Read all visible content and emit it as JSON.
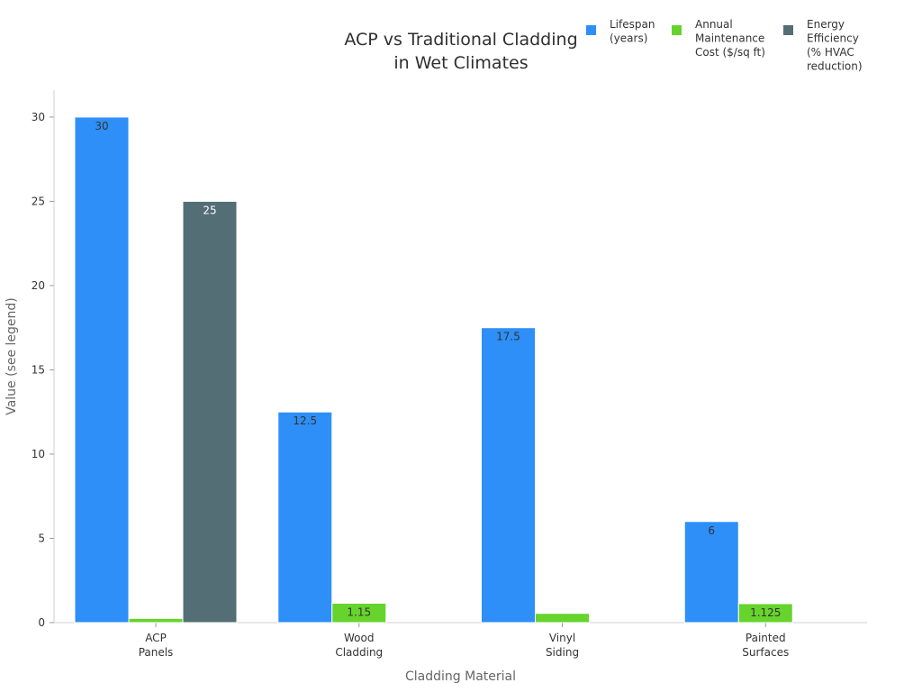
{
  "chart_data": {
    "type": "bar",
    "title_lines": [
      "ACP vs Traditional Cladding",
      "in Wet Climates"
    ],
    "xlabel": "Cladding Material",
    "ylabel": "Value (see legend)",
    "categories": [
      [
        "ACP",
        "Panels"
      ],
      [
        "Wood",
        "Cladding"
      ],
      [
        "Vinyl",
        "Siding"
      ],
      [
        "Painted",
        "Surfaces"
      ]
    ],
    "series": [
      {
        "name_lines": [
          "Lifespan",
          "(years)"
        ],
        "color": "#2d8ff7",
        "values": [
          30,
          12.5,
          17.5,
          6
        ],
        "labels": [
          "30",
          "12.5",
          "17.5",
          "6"
        ],
        "label_color": "dark"
      },
      {
        "name_lines": [
          "Annual",
          "Maintenance",
          "Cost ($/sq ft)"
        ],
        "color": "#66d42c",
        "values": [
          0.25,
          1.15,
          0.55,
          1.125
        ],
        "labels": [
          "",
          "1.15",
          "",
          "1.125"
        ],
        "label_color": "dark"
      },
      {
        "name_lines": [
          "Energy",
          "Efficiency",
          "(% HVAC",
          "reduction)"
        ],
        "color": "#546e76",
        "values": [
          25,
          null,
          null,
          null
        ],
        "labels": [
          "25",
          "",
          "",
          ""
        ],
        "label_color": "light"
      }
    ],
    "ylim": [
      0,
      31.6
    ],
    "yticks": [
      0,
      5,
      10,
      15,
      20,
      25,
      30
    ],
    "grid": false,
    "legend_position": "top-right"
  }
}
